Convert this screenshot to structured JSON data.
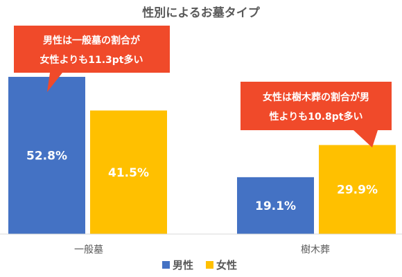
{
  "chart_data": {
    "type": "bar",
    "title": "性別によるお墓タイプ",
    "categories": [
      "一般墓",
      "樹木葬"
    ],
    "series": [
      {
        "name": "男性",
        "values": [
          52.8,
          19.1
        ],
        "labels": [
          "52.8%",
          "19.1%"
        ],
        "color": "#4472C4"
      },
      {
        "name": "女性",
        "values": [
          41.5,
          29.9
        ],
        "labels": [
          "41.5%",
          "29.9%"
        ],
        "color": "#FFC000"
      }
    ],
    "ylim": [
      0,
      55
    ],
    "grid": false,
    "legend": "bottom",
    "annotations": [
      {
        "lines": [
          "男性は一般墓の割合が",
          "女性よりも11.3pt多い"
        ],
        "color": "#F04A2A"
      },
      {
        "lines": [
          "女性は樹木葬の割合が男",
          "性よりも10.8pt多い"
        ],
        "color": "#F04A2A"
      }
    ]
  }
}
